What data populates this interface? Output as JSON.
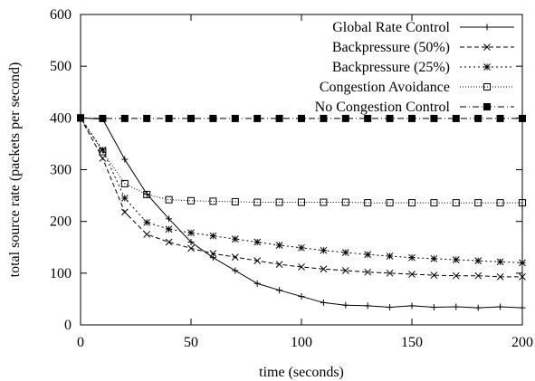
{
  "chart_data": {
    "type": "line",
    "title": "",
    "xlabel": "time (seconds)",
    "ylabel": "total source rate (packets per second)",
    "xlim": [
      0,
      200
    ],
    "ylim": [
      0,
      600
    ],
    "xticks": [
      0,
      50,
      100,
      150,
      200
    ],
    "yticks": [
      0,
      100,
      200,
      300,
      400,
      500,
      600
    ],
    "grid": false,
    "legend_position": "top-right",
    "series": [
      {
        "name": "Global Rate Control",
        "marker": "plus",
        "dash": "solid",
        "points": [
          [
            0,
            400
          ],
          [
            10,
            398
          ],
          [
            20,
            320
          ],
          [
            30,
            253
          ],
          [
            40,
            205
          ],
          [
            50,
            160
          ],
          [
            60,
            130
          ],
          [
            70,
            105
          ],
          [
            80,
            80
          ],
          [
            90,
            67
          ],
          [
            100,
            55
          ],
          [
            110,
            43
          ],
          [
            120,
            38
          ],
          [
            130,
            37
          ],
          [
            140,
            34
          ],
          [
            150,
            37
          ],
          [
            160,
            34
          ],
          [
            170,
            35
          ],
          [
            180,
            33
          ],
          [
            190,
            35
          ],
          [
            200,
            33
          ]
        ]
      },
      {
        "name": "Backpressure (50%)",
        "marker": "cross",
        "dash": "dashed",
        "points": [
          [
            0,
            400
          ],
          [
            10,
            322
          ],
          [
            20,
            218
          ],
          [
            30,
            175
          ],
          [
            40,
            160
          ],
          [
            50,
            148
          ],
          [
            60,
            138
          ],
          [
            70,
            131
          ],
          [
            80,
            124
          ],
          [
            90,
            117
          ],
          [
            100,
            112
          ],
          [
            110,
            108
          ],
          [
            120,
            105
          ],
          [
            130,
            102
          ],
          [
            140,
            100
          ],
          [
            150,
            98
          ],
          [
            160,
            96
          ],
          [
            170,
            95
          ],
          [
            180,
            95
          ],
          [
            190,
            93
          ],
          [
            200,
            93
          ]
        ]
      },
      {
        "name": "Backpressure (25%)",
        "marker": "star",
        "dash": "dotted",
        "points": [
          [
            0,
            400
          ],
          [
            10,
            338
          ],
          [
            20,
            245
          ],
          [
            30,
            198
          ],
          [
            40,
            185
          ],
          [
            50,
            178
          ],
          [
            60,
            172
          ],
          [
            70,
            166
          ],
          [
            80,
            160
          ],
          [
            90,
            154
          ],
          [
            100,
            149
          ],
          [
            110,
            144
          ],
          [
            120,
            140
          ],
          [
            130,
            136
          ],
          [
            140,
            133
          ],
          [
            150,
            130
          ],
          [
            160,
            128
          ],
          [
            170,
            126
          ],
          [
            180,
            124
          ],
          [
            190,
            122
          ],
          [
            200,
            120
          ]
        ]
      },
      {
        "name": "Congestion Avoidance",
        "marker": "open-square",
        "dash": "fine-dotted",
        "points": [
          [
            0,
            400
          ],
          [
            10,
            335
          ],
          [
            20,
            273
          ],
          [
            30,
            252
          ],
          [
            40,
            242
          ],
          [
            50,
            240
          ],
          [
            60,
            239
          ],
          [
            70,
            238
          ],
          [
            80,
            237
          ],
          [
            90,
            237
          ],
          [
            100,
            237
          ],
          [
            110,
            237
          ],
          [
            120,
            237
          ],
          [
            130,
            236
          ],
          [
            140,
            236
          ],
          [
            150,
            236
          ],
          [
            160,
            236
          ],
          [
            170,
            236
          ],
          [
            180,
            236
          ],
          [
            190,
            236
          ],
          [
            200,
            236
          ]
        ]
      },
      {
        "name": "No Congestion Control",
        "marker": "filled-square",
        "dash": "dash-dot",
        "points": [
          [
            0,
            400
          ],
          [
            10,
            399
          ],
          [
            20,
            399
          ],
          [
            30,
            399
          ],
          [
            40,
            399
          ],
          [
            50,
            399
          ],
          [
            60,
            399
          ],
          [
            70,
            399
          ],
          [
            80,
            399
          ],
          [
            90,
            399
          ],
          [
            100,
            399
          ],
          [
            110,
            399
          ],
          [
            120,
            399
          ],
          [
            130,
            399
          ],
          [
            140,
            399
          ],
          [
            150,
            399
          ],
          [
            160,
            399
          ],
          [
            170,
            399
          ],
          [
            180,
            399
          ],
          [
            190,
            399
          ],
          [
            200,
            399
          ]
        ]
      }
    ]
  }
}
